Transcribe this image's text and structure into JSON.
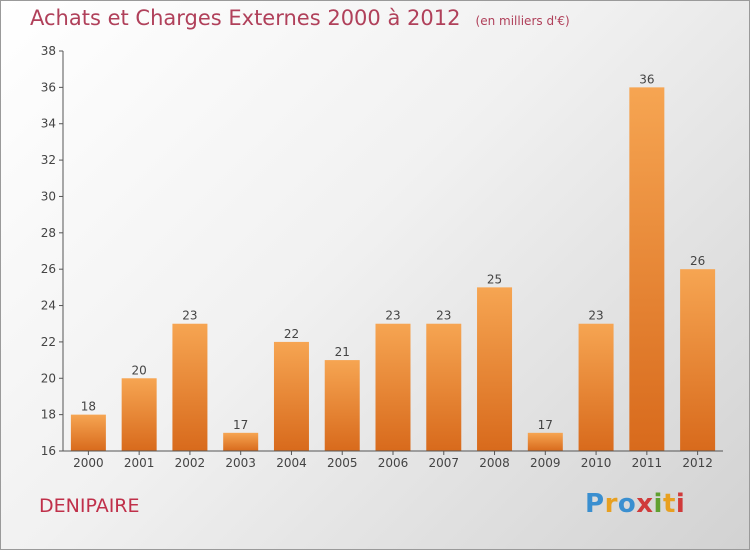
{
  "title": "Achats et Charges Externes 2000 à 2012",
  "unit_note": "(en milliers d'€)",
  "commune": "DENIPAIRE",
  "logo": {
    "letters": [
      "P",
      "r",
      "o",
      "x",
      "i",
      "t",
      "i"
    ],
    "colors": [
      "#3a8fd0",
      "#e8a020",
      "#3a8fd0",
      "#d03a3a",
      "#60a030",
      "#e8a020",
      "#d03a3a"
    ]
  },
  "colors": {
    "bar_light": "#f6a552",
    "bar_dark": "#d86a1c",
    "title": "#b0405a",
    "axis": "#444444"
  },
  "chart_data": {
    "type": "bar",
    "title": "Achats et Charges Externes 2000 à 2012",
    "subtitle": "(en milliers d'€)",
    "xlabel": "",
    "ylabel": "",
    "categories": [
      "2000",
      "2001",
      "2002",
      "2003",
      "2004",
      "2005",
      "2006",
      "2007",
      "2008",
      "2009",
      "2010",
      "2011",
      "2012"
    ],
    "values": [
      18,
      20,
      23,
      17,
      22,
      21,
      23,
      23,
      25,
      17,
      23,
      36,
      26
    ],
    "ylim": [
      16,
      38
    ],
    "yticks": [
      16,
      18,
      20,
      22,
      24,
      26,
      28,
      30,
      32,
      34,
      36,
      38
    ],
    "grid": false,
    "legend": "none"
  }
}
